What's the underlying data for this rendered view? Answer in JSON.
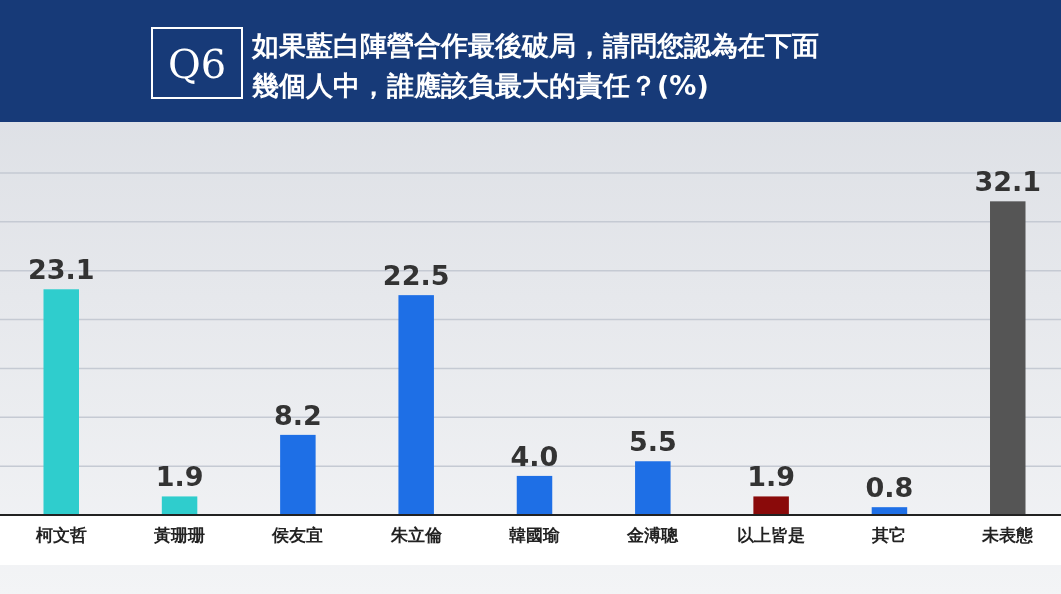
{
  "chart_data": {
    "type": "bar",
    "title": "如果藍白陣營合作最後破局，請問您認為在下面幾個人中，誰應該負最大的責任？(%)",
    "annotations": [
      "Q6"
    ],
    "categories": [
      "柯文哲",
      "黃珊珊",
      "侯友宜",
      "朱立倫",
      "韓國瑜",
      "金溥聰",
      "以上皆是",
      "其它",
      "未表態"
    ],
    "values": [
      23.1,
      1.9,
      8.2,
      22.5,
      4.0,
      5.5,
      1.9,
      0.8,
      32.1
    ],
    "value_labels": [
      "23.1",
      "1.9",
      "8.2",
      "22.5",
      "4.0",
      "5.5",
      "1.9",
      "0.8",
      "32.1"
    ],
    "colors": [
      "#2fcdcd",
      "#2fcdcd",
      "#1e6fe6",
      "#1e6fe6",
      "#1e6fe6",
      "#1e6fe6",
      "#8a0a0a",
      "#1e6fe6",
      "#555555"
    ],
    "ylim": [
      0,
      35
    ],
    "yticks": [
      {
        "value": 5,
        "label": null
      },
      {
        "value": 10,
        "label": null
      },
      {
        "value": 15,
        "label": null
      },
      {
        "value": 20,
        "label": null
      },
      {
        "value": 25,
        "label": null
      },
      {
        "value": 30,
        "label": null
      },
      {
        "value": 35,
        "label": null
      }
    ],
    "grid": "y",
    "tick_labels": "x"
  }
}
